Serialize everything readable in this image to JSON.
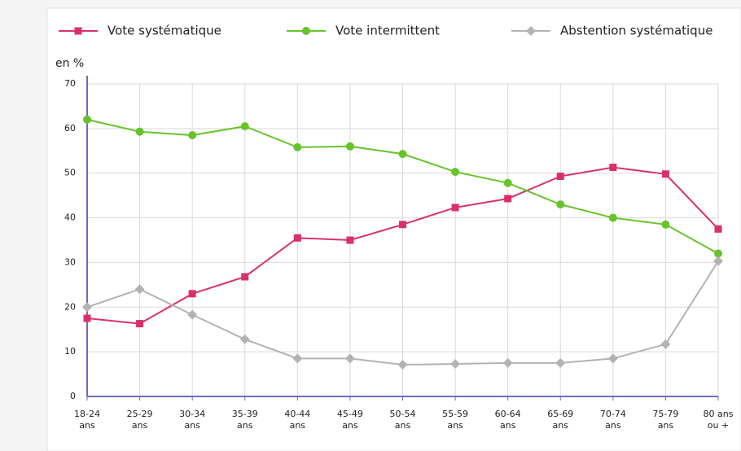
{
  "chart_data": {
    "type": "line",
    "ylabel": "en %",
    "categories": [
      "18-24\nans",
      "25-29\nans",
      "30-34\nans",
      "35-39\nans",
      "40-44\nans",
      "45-49\nans",
      "50-54\nans",
      "55-59\nans",
      "60-64\nans",
      "65-69\nans",
      "70-74\nans",
      "75-79\nans",
      "80 ans\nou +"
    ],
    "series": [
      {
        "name": "Vote systématique",
        "color": "#d9306a",
        "marker": "square",
        "values": [
          17.5,
          16.3,
          23,
          26.8,
          35.5,
          35,
          38.5,
          42.3,
          44.3,
          49.3,
          51.3,
          49.8,
          37.5
        ]
      },
      {
        "name": "Vote intermittent",
        "color": "#66c32a",
        "marker": "circle",
        "values": [
          62,
          59.3,
          58.5,
          60.5,
          55.8,
          56,
          54.3,
          50.3,
          47.8,
          43,
          40,
          38.5,
          32
        ]
      },
      {
        "name": "Abstention systématique",
        "color": "#b3b3b3",
        "marker": "diamond",
        "values": [
          20,
          24,
          18.3,
          12.8,
          8.5,
          8.5,
          7.1,
          7.3,
          7.5,
          7.5,
          8.5,
          11.7,
          30.3
        ]
      }
    ],
    "ylim": [
      0,
      70
    ],
    "yticks": [
      0,
      10,
      20,
      30,
      40,
      50,
      60,
      70
    ],
    "grid": true,
    "legend": "top"
  }
}
